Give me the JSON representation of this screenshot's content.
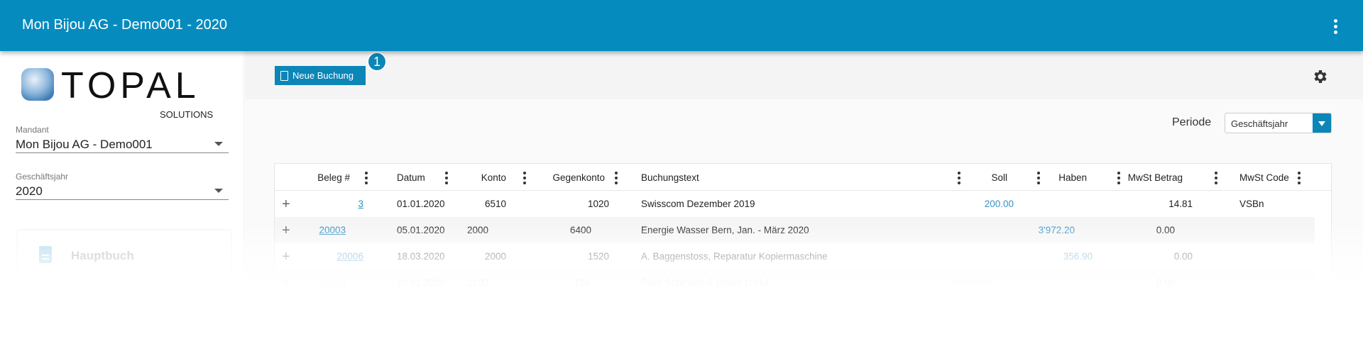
{
  "app": {
    "title": "Mon Bijou AG - Demo001 - 2020",
    "brand_color": "#068bbe"
  },
  "logo": {
    "text": "TOPAL",
    "sub": "SOLUTIONS"
  },
  "sidebar": {
    "mandant": {
      "label": "Mandant",
      "value": "Mon Bijou AG - Demo001"
    },
    "year": {
      "label": "Geschäftsjahr",
      "value": "2020"
    },
    "nav": [
      {
        "label": "Hauptbuch",
        "icon": "document-icon"
      }
    ]
  },
  "toolbar": {
    "new_label": "Neue Buchung",
    "badge": "1"
  },
  "filter": {
    "label": "Periode",
    "value": "Geschäftsjahr"
  },
  "table": {
    "columns": [
      "Beleg #",
      "Datum",
      "Konto",
      "Gegenkonto",
      "Buchungstext",
      "Soll",
      "Haben",
      "MwSt Betrag",
      "MwSt Code"
    ],
    "rows": [
      {
        "beleg": "3",
        "datum": "01.01.2020",
        "konto": "6510",
        "gegenkonto": "1020",
        "text": "Swisscom Dezember 2019",
        "soll": "200.00",
        "haben": "",
        "mwst": "14.81",
        "code": "VSBn"
      },
      {
        "beleg": "20003",
        "datum": "05.01.2020",
        "konto": "2000",
        "gegenkonto": "6400",
        "text": "Energie Wasser Bern, Jan. - März 2020",
        "soll": "",
        "haben": "3'972.20",
        "mwst": "0.00",
        "code": ""
      },
      {
        "beleg": "20006",
        "datum": "18.03.2020",
        "konto": "2000",
        "gegenkonto": "1520",
        "text": "A. Baggenstoss, Reparatur Kopiermaschine",
        "soll": "",
        "haben": "356.90",
        "mwst": "0.00",
        "code": ""
      },
      {
        "beleg": "10003",
        "datum": "10.01.2020",
        "konto": "1100",
        "gegenkonto": "Div.",
        "text": "Pasc Schmuck & Uhren (1014",
        "soll": "344'184.00",
        "haben": "",
        "mwst": "0.00",
        "code": ""
      }
    ]
  }
}
